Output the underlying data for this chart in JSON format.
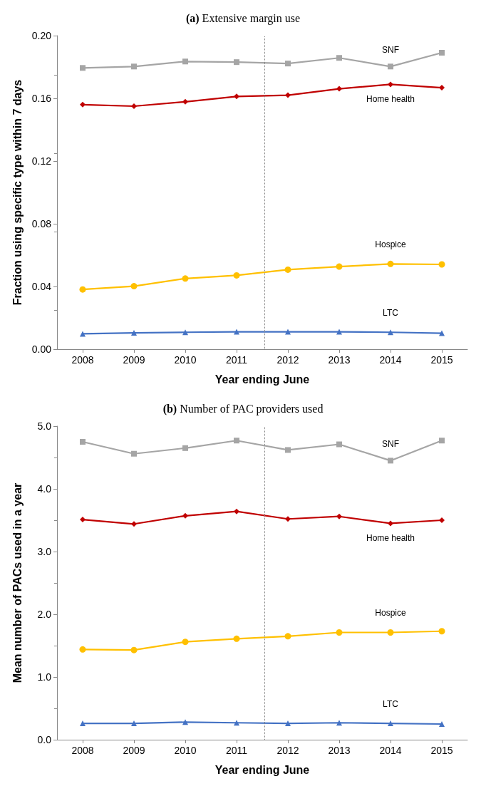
{
  "chart_data": [
    {
      "type": "line",
      "title": "(a) Extensive margin use",
      "xlabel": "Year ending June",
      "ylabel": "Fraction using specific type within 7 days",
      "x": [
        2008,
        2009,
        2010,
        2011,
        2012,
        2013,
        2014,
        2015
      ],
      "xlim": [
        2007.5,
        2015.5
      ],
      "xticks": [
        2008,
        2009,
        2010,
        2011,
        2012,
        2013,
        2014,
        2015
      ],
      "ylim": [
        0,
        0.2
      ],
      "yticks": [
        {
          "value": 0,
          "label": "0.00"
        },
        {
          "value": 0.04,
          "label": "0.04"
        },
        {
          "value": 0.08,
          "label": "0.08"
        },
        {
          "value": 0.12,
          "label": "0.12"
        },
        {
          "value": 0.16,
          "label": "0.16"
        },
        {
          "value": 0.2,
          "label": "0.20"
        }
      ],
      "grid": false,
      "legend": false,
      "ref_lines": [
        {
          "axis": "x",
          "value": 2011.55,
          "color": "#808080",
          "line_style": "dotted"
        }
      ],
      "series": [
        {
          "name": "SNF",
          "color": "#a5a5a5",
          "marker": "square",
          "values": [
            0.1794,
            0.1803,
            0.1835,
            0.1831,
            0.1822,
            0.1858,
            0.1803,
            0.1891
          ]
        },
        {
          "name": "Home health",
          "color": "#c00000",
          "marker": "diamond",
          "values": [
            0.156,
            0.155,
            0.1578,
            0.1612,
            0.162,
            0.1661,
            0.1689,
            0.1668
          ]
        },
        {
          "name": "Hospice",
          "color": "#ffc000",
          "marker": "circle",
          "values": [
            0.0381,
            0.0402,
            0.0451,
            0.0471,
            0.0507,
            0.0527,
            0.0544,
            0.0541
          ]
        },
        {
          "name": "LTC",
          "color": "#4472c4",
          "marker": "triangle",
          "values": [
            0.0098,
            0.0104,
            0.0108,
            0.0111,
            0.0111,
            0.0111,
            0.0108,
            0.0102
          ]
        }
      ]
    },
    {
      "type": "line",
      "title": "(b) Number of PAC providers used",
      "xlabel": "Year ending June",
      "ylabel": "Mean number of PACs used in a year",
      "x": [
        2008,
        2009,
        2010,
        2011,
        2012,
        2013,
        2014,
        2015
      ],
      "xlim": [
        2007.5,
        2015.5
      ],
      "xticks": [
        2008,
        2009,
        2010,
        2011,
        2012,
        2013,
        2014,
        2015
      ],
      "ylim": [
        0,
        5
      ],
      "yticks": [
        {
          "value": 0,
          "label": "0.0"
        },
        {
          "value": 1,
          "label": "1.0"
        },
        {
          "value": 2,
          "label": "2.0"
        },
        {
          "value": 3,
          "label": "3.0"
        },
        {
          "value": 4,
          "label": "4.0"
        },
        {
          "value": 5,
          "label": "5.0"
        }
      ],
      "grid": false,
      "legend": false,
      "ref_lines": [
        {
          "axis": "x",
          "value": 2011.55,
          "color": "#808080",
          "line_style": "dotted"
        }
      ],
      "series": [
        {
          "name": "SNF",
          "color": "#a5a5a5",
          "marker": "square",
          "values": [
            4.75,
            4.56,
            4.65,
            4.77,
            4.62,
            4.71,
            4.45,
            4.77
          ]
        },
        {
          "name": "Home health",
          "color": "#c00000",
          "marker": "diamond",
          "values": [
            3.51,
            3.44,
            3.57,
            3.64,
            3.52,
            3.56,
            3.45,
            3.5
          ]
        },
        {
          "name": "Hospice",
          "color": "#ffc000",
          "marker": "circle",
          "values": [
            1.44,
            1.43,
            1.56,
            1.61,
            1.65,
            1.71,
            1.71,
            1.73
          ]
        },
        {
          "name": "LTC",
          "color": "#4472c4",
          "marker": "triangle",
          "values": [
            0.26,
            0.26,
            0.28,
            0.27,
            0.26,
            0.27,
            0.26,
            0.25
          ]
        }
      ]
    }
  ]
}
